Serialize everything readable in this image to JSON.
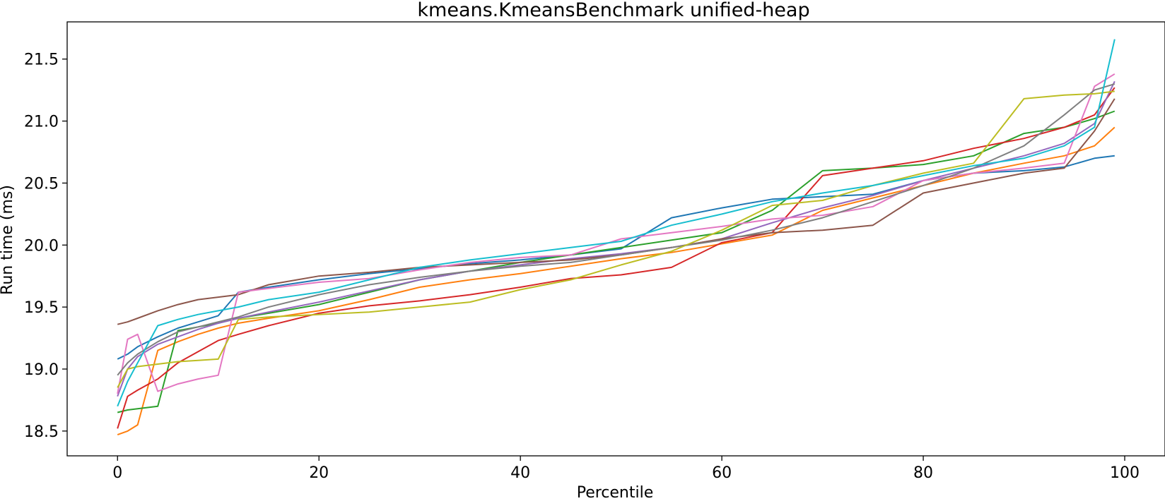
{
  "chart_data": {
    "type": "line",
    "title": "kmeans.KmeansBenchmark unified-heap",
    "xlabel": "Percentile",
    "ylabel": "Run time (ms)",
    "xlim": [
      -5,
      104
    ],
    "ylim": [
      18.3,
      21.8
    ],
    "xticks": [
      0,
      20,
      40,
      60,
      80,
      100
    ],
    "yticks": [
      18.5,
      19.0,
      19.5,
      20.0,
      20.5,
      21.0,
      21.5
    ],
    "ytick_labels": [
      "18.5",
      "19.0",
      "19.5",
      "20.0",
      "20.5",
      "21.0",
      "21.5"
    ],
    "grid": false,
    "legend": "none",
    "x": [
      0,
      1,
      2,
      4,
      6,
      8,
      10,
      12,
      15,
      20,
      25,
      30,
      35,
      40,
      45,
      50,
      55,
      60,
      65,
      70,
      75,
      80,
      85,
      90,
      94,
      97,
      99
    ],
    "series": [
      {
        "color": "#1f77b4",
        "values": [
          19.08,
          19.12,
          19.18,
          19.26,
          19.33,
          19.38,
          19.43,
          19.62,
          19.66,
          19.72,
          19.77,
          19.81,
          19.85,
          19.88,
          19.92,
          19.97,
          20.22,
          20.3,
          20.37,
          20.39,
          20.41,
          20.52,
          20.58,
          20.6,
          20.63,
          20.7,
          20.72
        ]
      },
      {
        "color": "#ff7f0e",
        "values": [
          18.47,
          18.5,
          18.55,
          19.15,
          19.22,
          19.28,
          19.33,
          19.37,
          19.41,
          19.47,
          19.56,
          19.66,
          19.72,
          19.77,
          19.83,
          19.89,
          19.94,
          20.01,
          20.08,
          20.28,
          20.38,
          20.48,
          20.58,
          20.66,
          20.72,
          20.8,
          20.95
        ]
      },
      {
        "color": "#2ca02c",
        "values": [
          18.65,
          18.67,
          18.68,
          18.7,
          19.31,
          19.34,
          19.37,
          19.41,
          19.45,
          19.52,
          19.62,
          19.72,
          19.79,
          19.86,
          19.92,
          19.98,
          20.04,
          20.1,
          20.28,
          20.6,
          20.62,
          20.65,
          20.72,
          20.9,
          20.95,
          21.02,
          21.08
        ]
      },
      {
        "color": "#d62728",
        "values": [
          18.52,
          18.78,
          18.83,
          18.92,
          19.05,
          19.14,
          19.23,
          19.28,
          19.35,
          19.45,
          19.51,
          19.55,
          19.6,
          19.66,
          19.73,
          19.76,
          19.82,
          20.02,
          20.1,
          20.56,
          20.62,
          20.68,
          20.78,
          20.86,
          20.95,
          21.05,
          21.27
        ]
      },
      {
        "color": "#9467bd",
        "values": [
          18.78,
          19.0,
          19.1,
          19.2,
          19.26,
          19.32,
          19.37,
          19.41,
          19.46,
          19.54,
          19.63,
          19.72,
          19.79,
          19.84,
          19.89,
          19.93,
          19.98,
          20.05,
          20.18,
          20.3,
          20.4,
          20.52,
          20.62,
          20.72,
          20.82,
          20.98,
          21.32
        ]
      },
      {
        "color": "#8c564b",
        "values": [
          19.36,
          19.38,
          19.41,
          19.47,
          19.52,
          19.56,
          19.58,
          19.6,
          19.68,
          19.75,
          19.78,
          19.82,
          19.84,
          19.86,
          19.88,
          19.92,
          19.98,
          20.05,
          20.1,
          20.12,
          20.16,
          20.42,
          20.5,
          20.58,
          20.62,
          20.92,
          21.18
        ]
      },
      {
        "color": "#e377c2",
        "values": [
          18.8,
          19.24,
          19.28,
          18.82,
          18.88,
          18.92,
          18.95,
          19.62,
          19.65,
          19.7,
          19.73,
          19.8,
          19.86,
          19.9,
          19.92,
          20.05,
          20.1,
          20.15,
          20.21,
          20.24,
          20.31,
          20.52,
          20.58,
          20.62,
          20.66,
          21.28,
          21.38
        ]
      },
      {
        "color": "#7f7f7f",
        "values": [
          18.95,
          19.05,
          19.12,
          19.22,
          19.3,
          19.34,
          19.38,
          19.42,
          19.5,
          19.6,
          19.68,
          19.74,
          19.79,
          19.83,
          19.86,
          19.92,
          19.98,
          20.04,
          20.12,
          20.22,
          20.35,
          20.48,
          20.62,
          20.8,
          21.05,
          21.25,
          21.3
        ]
      },
      {
        "color": "#bcbd22",
        "values": [
          18.85,
          19.0,
          19.02,
          19.04,
          19.06,
          19.07,
          19.08,
          19.4,
          19.42,
          19.44,
          19.46,
          19.5,
          19.54,
          19.64,
          19.72,
          19.84,
          19.95,
          20.12,
          20.32,
          20.36,
          20.48,
          20.58,
          20.66,
          21.18,
          21.21,
          21.22,
          21.24
        ]
      },
      {
        "color": "#17becf",
        "values": [
          18.7,
          18.9,
          19.05,
          19.35,
          19.4,
          19.44,
          19.47,
          19.5,
          19.56,
          19.62,
          19.72,
          19.82,
          19.88,
          19.93,
          19.98,
          20.03,
          20.16,
          20.25,
          20.35,
          20.42,
          20.48,
          20.56,
          20.64,
          20.7,
          20.8,
          20.95,
          21.66
        ]
      }
    ]
  }
}
